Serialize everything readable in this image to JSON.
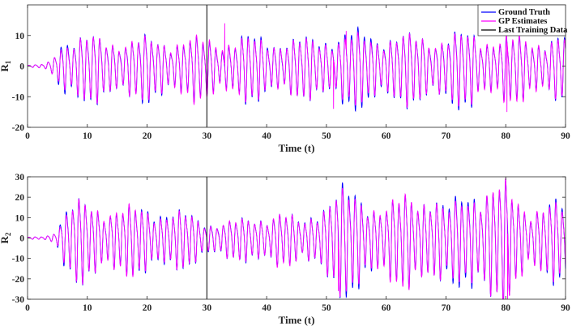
{
  "colors": {
    "ground_truth": "#0000ff",
    "gp_estimates": "#ff00ff",
    "last_training": "#000000"
  },
  "chart_data": [
    {
      "type": "line",
      "id": "top",
      "ylabel": "R",
      "ylabel_sub": "1",
      "xlabel": "Time (t)",
      "xlim": [
        0,
        90
      ],
      "ylim": [
        -20,
        20
      ],
      "xticks": [
        0,
        10,
        20,
        30,
        40,
        50,
        60,
        70,
        80,
        90
      ],
      "yticks": [
        -20,
        -10,
        0,
        10
      ],
      "last_training_x": 30,
      "legend": {
        "placement": "top-right",
        "entries": [
          "Ground Truth",
          "GP Estimates",
          "Last Training Data"
        ]
      },
      "envelope": {
        "t": [
          0,
          3,
          4,
          5,
          6,
          10,
          20,
          30,
          40,
          45,
          50,
          55,
          60,
          65,
          70,
          75,
          80,
          85,
          90
        ],
        "amp": [
          0.2,
          0.6,
          2,
          6,
          8,
          8.5,
          8,
          8.5,
          8,
          7.5,
          8.5,
          9,
          9,
          9,
          9,
          9.5,
          9,
          8.5,
          8.5
        ]
      },
      "period": 1.08,
      "spikes": [
        {
          "x": 33,
          "y": 14
        },
        {
          "x": 53.3,
          "y": 11.5
        },
        {
          "x": 51.2,
          "y": -14
        },
        {
          "x": 80.2,
          "y": -15
        }
      ],
      "series": [
        {
          "name": "Ground Truth",
          "color_key": "ground_truth"
        },
        {
          "name": "GP Estimates",
          "color_key": "gp_estimates"
        }
      ]
    },
    {
      "type": "line",
      "id": "bottom",
      "ylabel": "R",
      "ylabel_sub": "2",
      "xlabel": "Time (t)",
      "xlim": [
        0,
        90
      ],
      "ylim": [
        -30,
        30
      ],
      "xticks": [
        0,
        10,
        20,
        30,
        40,
        50,
        60,
        70,
        80,
        90
      ],
      "yticks": [
        -30,
        -20,
        -10,
        0,
        10,
        20,
        30
      ],
      "last_training_x": 30,
      "envelope": {
        "t": [
          0,
          3,
          4,
          5,
          6,
          8,
          12,
          20,
          26,
          30,
          36,
          42,
          46,
          48,
          52,
          56,
          60,
          64,
          68,
          70,
          74,
          78,
          80,
          84,
          90
        ],
        "amp": [
          0.3,
          0.8,
          2,
          5,
          10,
          16,
          15,
          13,
          11,
          7,
          8,
          12,
          7,
          13,
          20,
          19,
          14,
          21,
          20,
          11,
          22,
          23,
          24,
          15,
          14
        ]
      },
      "period": 1.05,
      "spikes": [
        {
          "x": 80.3,
          "y": -30
        },
        {
          "x": 52,
          "y": -26
        }
      ],
      "series": [
        {
          "name": "Ground Truth",
          "color_key": "ground_truth"
        },
        {
          "name": "GP Estimates",
          "color_key": "gp_estimates"
        }
      ]
    }
  ]
}
